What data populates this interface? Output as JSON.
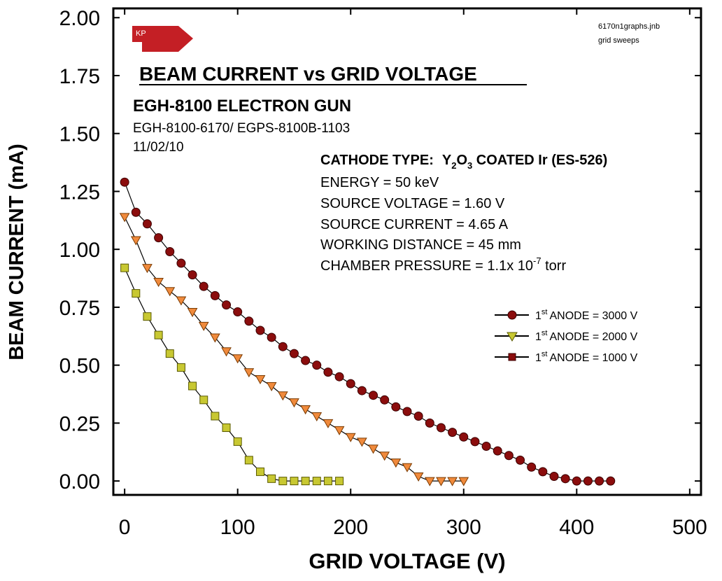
{
  "chart_data": {
    "type": "line",
    "title": "BEAM CURRENT vs GRID VOLTAGE",
    "subtitle": "EGH-8100 ELECTRON GUN",
    "model_line": "EGH-8100-6170/ EGPS-8100B-1103",
    "date": "11/02/10",
    "file_note": [
      "6170n1graphs.jnb",
      "grid sweeps"
    ],
    "logo_text": "KP",
    "cathode": {
      "label": "CATHODE TYPE:",
      "y": "Y",
      "y_sub": "2",
      "o": "O",
      "o_sub": "3",
      "rest": " COATED Ir (ES-526)"
    },
    "params": [
      {
        "text": "ENERGY = 50 keV"
      },
      {
        "text": "SOURCE VOLTAGE = 1.60 V"
      },
      {
        "text": "SOURCE CURRENT = 4.65 A"
      },
      {
        "text": "WORKING DISTANCE = 45 mm"
      },
      {
        "text": "CHAMBER PRESSURE = 1.1x 10",
        "sup": "-7",
        "after": " torr"
      }
    ],
    "xlabel": "GRID VOLTAGE (V)",
    "ylabel": "BEAM CURRENT (mA)",
    "xlim": [
      -10,
      510
    ],
    "ylim": [
      -0.06,
      2.04
    ],
    "xticks": [
      0,
      100,
      200,
      300,
      400,
      500
    ],
    "xtick_labels": [
      "0",
      "100",
      "200",
      "300",
      "400",
      "500"
    ],
    "yticks": [
      0,
      0.25,
      0.5,
      0.75,
      1.0,
      1.25,
      1.5,
      1.75,
      2.0
    ],
    "ytick_labels": [
      "0.00",
      "0.25",
      "0.50",
      "0.75",
      "1.00",
      "1.25",
      "1.50",
      "1.75",
      "2.00"
    ],
    "grid": false,
    "legend_position": "right",
    "series": [
      {
        "name_pre": "1",
        "name_sup": "st",
        "name": "ANODE = 3000 V",
        "marker": "circle",
        "fill": "#8b0d0d",
        "stroke": "#3a0000",
        "x": [
          0,
          10,
          20,
          30,
          40,
          50,
          60,
          70,
          80,
          90,
          100,
          110,
          120,
          130,
          140,
          150,
          160,
          170,
          180,
          190,
          200,
          210,
          220,
          230,
          240,
          250,
          260,
          270,
          280,
          290,
          300,
          310,
          320,
          330,
          340,
          350,
          360,
          370,
          380,
          390,
          400,
          410,
          420,
          430
        ],
        "y": [
          1.29,
          1.16,
          1.11,
          1.05,
          0.99,
          0.94,
          0.89,
          0.84,
          0.8,
          0.76,
          0.73,
          0.69,
          0.65,
          0.62,
          0.58,
          0.55,
          0.52,
          0.5,
          0.47,
          0.45,
          0.42,
          0.39,
          0.37,
          0.35,
          0.32,
          0.3,
          0.28,
          0.25,
          0.23,
          0.21,
          0.19,
          0.17,
          0.15,
          0.13,
          0.11,
          0.09,
          0.06,
          0.04,
          0.02,
          0.01,
          0.0,
          0.0,
          0.0,
          0.0
        ]
      },
      {
        "name_pre": "1",
        "name_sup": "st",
        "name": "ANODE = 2000 V",
        "marker": "triangle-down",
        "fill": "#f08a3c",
        "stroke": "#7a3a00",
        "x": [
          0,
          10,
          20,
          30,
          40,
          50,
          60,
          70,
          80,
          90,
          100,
          110,
          120,
          130,
          140,
          150,
          160,
          170,
          180,
          190,
          200,
          210,
          220,
          230,
          240,
          250,
          260,
          270,
          280,
          290,
          300
        ],
        "y": [
          1.14,
          1.04,
          0.92,
          0.86,
          0.82,
          0.78,
          0.73,
          0.67,
          0.62,
          0.56,
          0.53,
          0.47,
          0.44,
          0.41,
          0.37,
          0.34,
          0.31,
          0.28,
          0.25,
          0.22,
          0.19,
          0.17,
          0.14,
          0.11,
          0.08,
          0.06,
          0.02,
          0.0,
          0.0,
          0.0,
          0.0
        ]
      },
      {
        "name_pre": "1",
        "name_sup": "st",
        "name": "ANODE = 1000 V",
        "marker": "square",
        "fill": "#c8c832",
        "stroke": "#5a5a00",
        "legend_fill": "#8b0d0d",
        "legend_stroke": "#3a0000",
        "x": [
          0,
          10,
          20,
          30,
          40,
          50,
          60,
          70,
          80,
          90,
          100,
          110,
          120,
          130,
          140,
          150,
          160,
          170,
          180,
          190
        ],
        "y": [
          0.92,
          0.81,
          0.71,
          0.63,
          0.55,
          0.49,
          0.41,
          0.35,
          0.28,
          0.23,
          0.17,
          0.09,
          0.04,
          0.01,
          0.0,
          0.0,
          0.0,
          0.0,
          0.0,
          0.0
        ]
      }
    ]
  }
}
